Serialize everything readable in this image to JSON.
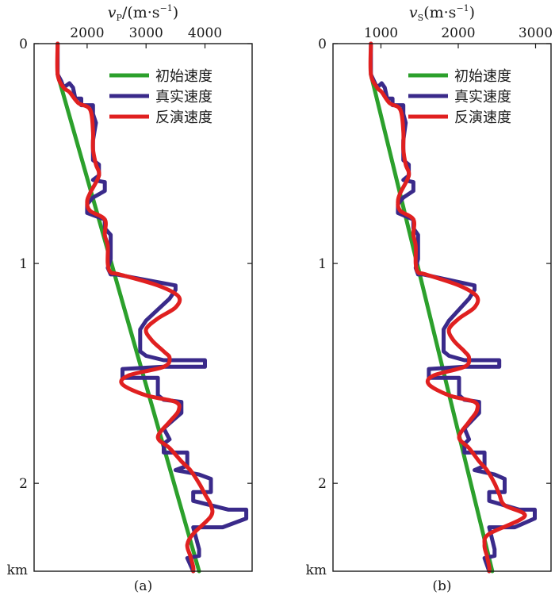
{
  "chart_data": [
    {
      "type": "line",
      "panel_label": "(a)",
      "xlabel": "vP/(m·s⁻¹)",
      "xlabel_var": "v",
      "xlabel_sub": "P",
      "xlabel_unit": "/(m·s",
      "xlabel_sup": "−1",
      "xlabel_close": ")",
      "ylabel": "km",
      "xlim": [
        1100,
        4800
      ],
      "ylim": [
        2.4,
        0
      ],
      "x_ticks": [
        2000,
        3000,
        4000
      ],
      "x_tick_labels": [
        "2000",
        "3000",
        "4000"
      ],
      "y_ticks": [
        0,
        1,
        2
      ],
      "y_tick_labels": [
        "0",
        "1",
        "2"
      ],
      "legend_position": "top-right",
      "series": [
        {
          "name": "初始速度",
          "color": "#2ca02c",
          "points": [
            [
              1500,
              0.14
            ],
            [
              3900,
              2.4
            ]
          ]
        },
        {
          "name": "真实速度",
          "color": "#3a2a8a",
          "points": [
            [
              1500,
              0
            ],
            [
              1500,
              0.14
            ],
            [
              1560,
              0.17
            ],
            [
              1600,
              0.2
            ],
            [
              1700,
              0.18
            ],
            [
              1760,
              0.2
            ],
            [
              1800,
              0.25
            ],
            [
              1900,
              0.25
            ],
            [
              1900,
              0.28
            ],
            [
              2100,
              0.28
            ],
            [
              2100,
              0.32
            ],
            [
              2150,
              0.36
            ],
            [
              2100,
              0.44
            ],
            [
              2100,
              0.53
            ],
            [
              2200,
              0.55
            ],
            [
              2200,
              0.6
            ],
            [
              2100,
              0.62
            ],
            [
              2300,
              0.63
            ],
            [
              2300,
              0.67
            ],
            [
              2100,
              0.7
            ],
            [
              2000,
              0.73
            ],
            [
              2000,
              0.77
            ],
            [
              2300,
              0.8
            ],
            [
              2300,
              0.84
            ],
            [
              2400,
              0.87
            ],
            [
              2400,
              0.98
            ],
            [
              2350,
              1.02
            ],
            [
              2400,
              1.05
            ],
            [
              2500,
              1.05
            ],
            [
              3500,
              1.1
            ],
            [
              3500,
              1.12
            ],
            [
              3400,
              1.16
            ],
            [
              3000,
              1.26
            ],
            [
              2900,
              1.3
            ],
            [
              2900,
              1.4
            ],
            [
              3000,
              1.42
            ],
            [
              3300,
              1.44
            ],
            [
              4000,
              1.44
            ],
            [
              4000,
              1.47
            ],
            [
              3300,
              1.47
            ],
            [
              2600,
              1.48
            ],
            [
              2600,
              1.52
            ],
            [
              3200,
              1.52
            ],
            [
              3200,
              1.6
            ],
            [
              3300,
              1.62
            ],
            [
              3600,
              1.63
            ],
            [
              3600,
              1.68
            ],
            [
              3300,
              1.75
            ],
            [
              3400,
              1.8
            ],
            [
              3300,
              1.82
            ],
            [
              3300,
              1.86
            ],
            [
              3700,
              1.86
            ],
            [
              3700,
              1.92
            ],
            [
              3500,
              1.94
            ],
            [
              3900,
              1.96
            ],
            [
              4100,
              1.98
            ],
            [
              4100,
              2.04
            ],
            [
              3800,
              2.04
            ],
            [
              3800,
              2.08
            ],
            [
              4400,
              2.12
            ],
            [
              4700,
              2.12
            ],
            [
              4700,
              2.16
            ],
            [
              4300,
              2.2
            ],
            [
              3800,
              2.2
            ],
            [
              3900,
              2.3
            ],
            [
              3900,
              2.33
            ],
            [
              3700,
              2.34
            ],
            [
              3800,
              2.4
            ]
          ]
        },
        {
          "name": "反演速度",
          "color": "#e02020",
          "points": [
            [
              1500,
              0
            ],
            [
              1500,
              0.14
            ],
            [
              1600,
              0.2
            ],
            [
              1700,
              0.22
            ],
            [
              1850,
              0.27
            ],
            [
              2050,
              0.3
            ],
            [
              2100,
              0.4
            ],
            [
              2100,
              0.48
            ],
            [
              2150,
              0.55
            ],
            [
              2200,
              0.6
            ],
            [
              2050,
              0.68
            ],
            [
              2000,
              0.72
            ],
            [
              2050,
              0.76
            ],
            [
              2300,
              0.8
            ],
            [
              2300,
              0.87
            ],
            [
              2350,
              0.92
            ],
            [
              2350,
              1.0
            ],
            [
              2400,
              1.04
            ],
            [
              2550,
              1.05
            ],
            [
              3200,
              1.1
            ],
            [
              3550,
              1.15
            ],
            [
              3500,
              1.2
            ],
            [
              3200,
              1.25
            ],
            [
              3000,
              1.3
            ],
            [
              3100,
              1.35
            ],
            [
              3300,
              1.4
            ],
            [
              3400,
              1.43
            ],
            [
              3300,
              1.47
            ],
            [
              2700,
              1.51
            ],
            [
              2600,
              1.55
            ],
            [
              3000,
              1.6
            ],
            [
              3500,
              1.63
            ],
            [
              3550,
              1.67
            ],
            [
              3400,
              1.72
            ],
            [
              3200,
              1.79
            ],
            [
              3400,
              1.84
            ],
            [
              3600,
              1.9
            ],
            [
              3750,
              1.94
            ],
            [
              3900,
              2.0
            ],
            [
              4000,
              2.05
            ],
            [
              4100,
              2.1
            ],
            [
              4100,
              2.15
            ],
            [
              3800,
              2.23
            ],
            [
              3700,
              2.28
            ],
            [
              3750,
              2.33
            ],
            [
              3800,
              2.38
            ],
            [
              3800,
              2.4
            ]
          ]
        }
      ]
    },
    {
      "type": "line",
      "panel_label": "(b)",
      "xlabel": "vS(m·s⁻¹)",
      "xlabel_var": "v",
      "xlabel_sub": "S",
      "xlabel_unit": "(m·s",
      "xlabel_sup": "−1",
      "xlabel_close": ")",
      "ylabel": "km",
      "xlim": [
        380,
        3200
      ],
      "ylim": [
        2.4,
        0
      ],
      "x_ticks": [
        1000,
        2000,
        3000
      ],
      "x_tick_labels": [
        "1000",
        "2000",
        "3000"
      ],
      "y_ticks": [
        0,
        1,
        2
      ],
      "y_tick_labels": [
        "0",
        "1",
        "2"
      ],
      "legend_position": "top-right",
      "series": [
        {
          "name": "初始速度",
          "color": "#2ca02c",
          "points": [
            [
              870,
              0.14
            ],
            [
              2440,
              2.4
            ]
          ]
        },
        {
          "name": "真实速度",
          "color": "#3a2a8a",
          "points": [
            [
              870,
              0
            ],
            [
              870,
              0.14
            ],
            [
              910,
              0.17
            ],
            [
              950,
              0.2
            ],
            [
              1010,
              0.18
            ],
            [
              1050,
              0.2
            ],
            [
              1080,
              0.25
            ],
            [
              1150,
              0.25
            ],
            [
              1150,
              0.28
            ],
            [
              1290,
              0.28
            ],
            [
              1290,
              0.32
            ],
            [
              1320,
              0.36
            ],
            [
              1290,
              0.44
            ],
            [
              1290,
              0.53
            ],
            [
              1360,
              0.55
            ],
            [
              1360,
              0.6
            ],
            [
              1290,
              0.62
            ],
            [
              1420,
              0.63
            ],
            [
              1420,
              0.67
            ],
            [
              1290,
              0.7
            ],
            [
              1220,
              0.73
            ],
            [
              1220,
              0.77
            ],
            [
              1420,
              0.8
            ],
            [
              1420,
              0.84
            ],
            [
              1480,
              0.87
            ],
            [
              1480,
              0.98
            ],
            [
              1450,
              1.02
            ],
            [
              1480,
              1.05
            ],
            [
              1550,
              1.05
            ],
            [
              2210,
              1.1
            ],
            [
              2210,
              1.12
            ],
            [
              2140,
              1.16
            ],
            [
              1880,
              1.26
            ],
            [
              1810,
              1.3
            ],
            [
              1810,
              1.4
            ],
            [
              1880,
              1.42
            ],
            [
              2080,
              1.44
            ],
            [
              2530,
              1.44
            ],
            [
              2530,
              1.47
            ],
            [
              2080,
              1.47
            ],
            [
              1620,
              1.48
            ],
            [
              1620,
              1.52
            ],
            [
              2010,
              1.52
            ],
            [
              2010,
              1.6
            ],
            [
              2080,
              1.62
            ],
            [
              2270,
              1.63
            ],
            [
              2270,
              1.68
            ],
            [
              2080,
              1.75
            ],
            [
              2140,
              1.8
            ],
            [
              2080,
              1.82
            ],
            [
              2080,
              1.86
            ],
            [
              2340,
              1.86
            ],
            [
              2340,
              1.92
            ],
            [
              2210,
              1.94
            ],
            [
              2470,
              1.96
            ],
            [
              2600,
              1.98
            ],
            [
              2600,
              2.04
            ],
            [
              2400,
              2.04
            ],
            [
              2400,
              2.08
            ],
            [
              2790,
              2.12
            ],
            [
              2990,
              2.12
            ],
            [
              2990,
              2.16
            ],
            [
              2730,
              2.2
            ],
            [
              2400,
              2.2
            ],
            [
              2470,
              2.3
            ],
            [
              2470,
              2.33
            ],
            [
              2340,
              2.34
            ],
            [
              2400,
              2.4
            ]
          ]
        },
        {
          "name": "反演速度",
          "color": "#e02020",
          "points": [
            [
              870,
              0
            ],
            [
              870,
              0.14
            ],
            [
              950,
              0.2
            ],
            [
              1010,
              0.22
            ],
            [
              1110,
              0.27
            ],
            [
              1250,
              0.3
            ],
            [
              1290,
              0.4
            ],
            [
              1290,
              0.48
            ],
            [
              1320,
              0.55
            ],
            [
              1360,
              0.6
            ],
            [
              1250,
              0.68
            ],
            [
              1220,
              0.72
            ],
            [
              1250,
              0.76
            ],
            [
              1420,
              0.8
            ],
            [
              1420,
              0.87
            ],
            [
              1450,
              0.92
            ],
            [
              1450,
              1.0
            ],
            [
              1480,
              1.04
            ],
            [
              1580,
              1.05
            ],
            [
              2010,
              1.1
            ],
            [
              2240,
              1.15
            ],
            [
              2210,
              1.2
            ],
            [
              2010,
              1.25
            ],
            [
              1880,
              1.3
            ],
            [
              1940,
              1.35
            ],
            [
              2080,
              1.4
            ],
            [
              2140,
              1.43
            ],
            [
              2080,
              1.47
            ],
            [
              1680,
              1.51
            ],
            [
              1620,
              1.55
            ],
            [
              1880,
              1.6
            ],
            [
              2210,
              1.63
            ],
            [
              2240,
              1.67
            ],
            [
              2140,
              1.72
            ],
            [
              2010,
              1.79
            ],
            [
              2140,
              1.84
            ],
            [
              2270,
              1.9
            ],
            [
              2370,
              1.94
            ],
            [
              2470,
              2.0
            ],
            [
              2530,
              2.05
            ],
            [
              2600,
              2.1
            ],
            [
              2860,
              2.15
            ],
            [
              2400,
              2.23
            ],
            [
              2340,
              2.28
            ],
            [
              2370,
              2.33
            ],
            [
              2400,
              2.38
            ],
            [
              2400,
              2.4
            ]
          ]
        }
      ]
    }
  ]
}
